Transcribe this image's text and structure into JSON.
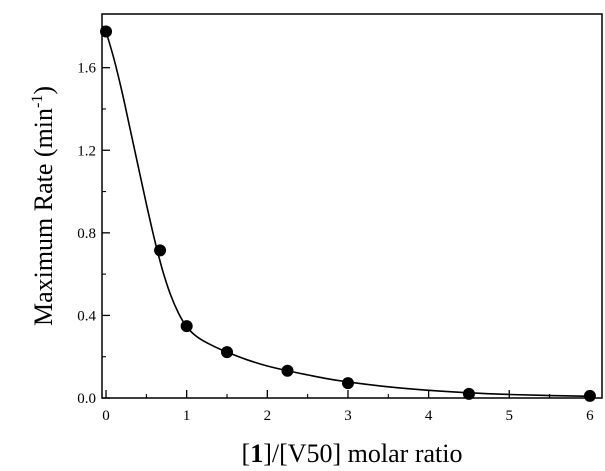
{
  "chart_data": {
    "type": "scatter",
    "title": "",
    "xlabel": {
      "prefix": "[",
      "bold": "1",
      "suffix": "]/[V50] molar ratio"
    },
    "ylabel": {
      "main": "Maximum Rate (min",
      "sup": "-1",
      "close": ")"
    },
    "xlim": [
      -0.05,
      6.15
    ],
    "ylim": [
      0.0,
      1.86
    ],
    "x_ticks": [
      0,
      1,
      2,
      3,
      4,
      5,
      6
    ],
    "x_tick_labels": [
      "0",
      "1",
      "2",
      "3",
      "4",
      "5",
      "6"
    ],
    "x_minor_ticks": [
      0.5,
      1.5,
      2.5,
      3.5,
      4.5,
      5.5
    ],
    "y_ticks": [
      0.0,
      0.4,
      0.8,
      1.2,
      1.6
    ],
    "y_tick_labels": [
      "0.0",
      "0.4",
      "0.8",
      "1.2",
      "1.6"
    ],
    "y_minor_ticks": [
      0.2,
      0.6,
      1.0,
      1.4,
      1.8
    ],
    "grid": false,
    "legend": "none",
    "colors": {
      "marker": "#000000",
      "line": "#000000"
    },
    "series": [
      {
        "kind": "points",
        "x": [
          0,
          0.67,
          1.0,
          1.5,
          2.25,
          3.0,
          4.5,
          6.0
        ],
        "y": [
          1.775,
          0.715,
          0.348,
          0.222,
          0.132,
          0.072,
          0.02,
          0.01
        ]
      },
      {
        "kind": "fit-curve",
        "x": [
          0,
          0.1,
          0.2,
          0.3,
          0.4,
          0.5,
          0.6,
          0.7,
          0.8,
          0.9,
          1.0,
          1.1,
          1.2,
          1.35,
          1.5,
          1.75,
          2.0,
          2.25,
          2.5,
          2.75,
          3.0,
          3.5,
          4.0,
          4.5,
          5.0,
          5.5,
          6.0
        ],
        "y": [
          1.775,
          1.64,
          1.48,
          1.3,
          1.12,
          0.94,
          0.77,
          0.62,
          0.5,
          0.41,
          0.345,
          0.305,
          0.278,
          0.248,
          0.222,
          0.185,
          0.155,
          0.132,
          0.112,
          0.093,
          0.078,
          0.054,
          0.037,
          0.025,
          0.017,
          0.012,
          0.008
        ]
      }
    ]
  }
}
